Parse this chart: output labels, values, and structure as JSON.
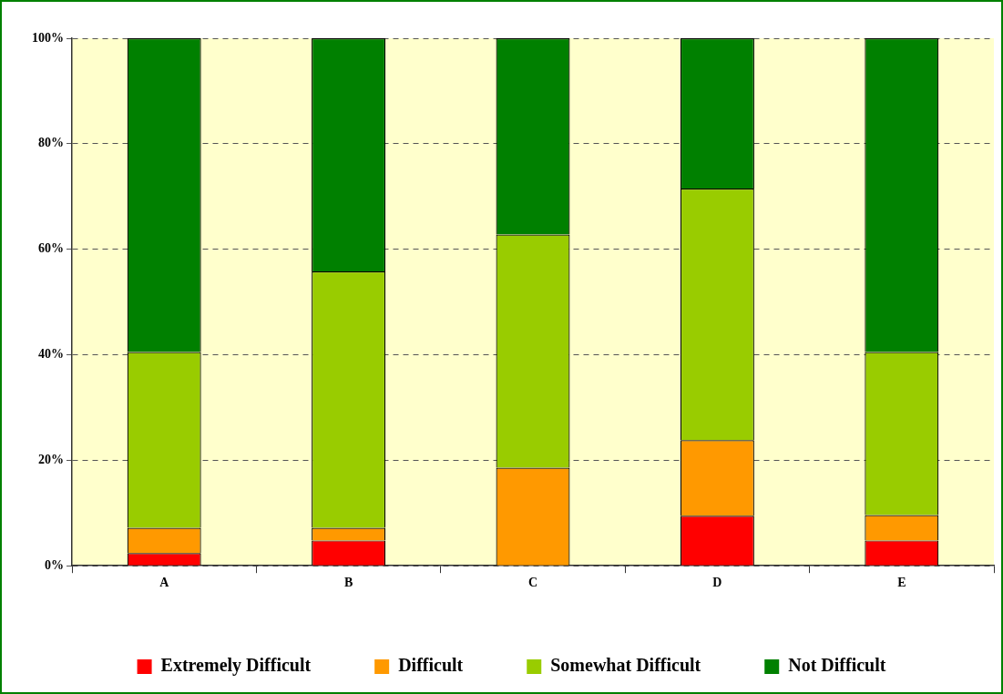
{
  "chart_data": {
    "type": "bar",
    "stacked": true,
    "categories": [
      "A",
      "B",
      "C",
      "D",
      "E"
    ],
    "series": [
      {
        "name": "Extremely Difficult",
        "color": "#ff0000",
        "values": [
          2.4,
          4.8,
          0,
          9.5,
          4.8
        ]
      },
      {
        "name": "Difficult",
        "color": "#ff9900",
        "values": [
          4.8,
          2.4,
          18.6,
          14.3,
          4.8
        ]
      },
      {
        "name": "Somewhat Difficult",
        "color": "#99cc00",
        "values": [
          33.3,
          48.6,
          44.2,
          47.7,
          30.9
        ]
      },
      {
        "name": "Not Difficult",
        "color": "#008000",
        "values": [
          59.5,
          44.2,
          37.2,
          28.5,
          59.5
        ]
      }
    ],
    "ylim": [
      0,
      100
    ],
    "yticks": [
      {
        "value": 0,
        "label": "0%"
      },
      {
        "value": 20,
        "label": "20%"
      },
      {
        "value": 40,
        "label": "40%"
      },
      {
        "value": 60,
        "label": "60%"
      },
      {
        "value": 80,
        "label": "80%"
      },
      {
        "value": 100,
        "label": "100%"
      }
    ],
    "grid": "y",
    "legend": "bottom"
  }
}
